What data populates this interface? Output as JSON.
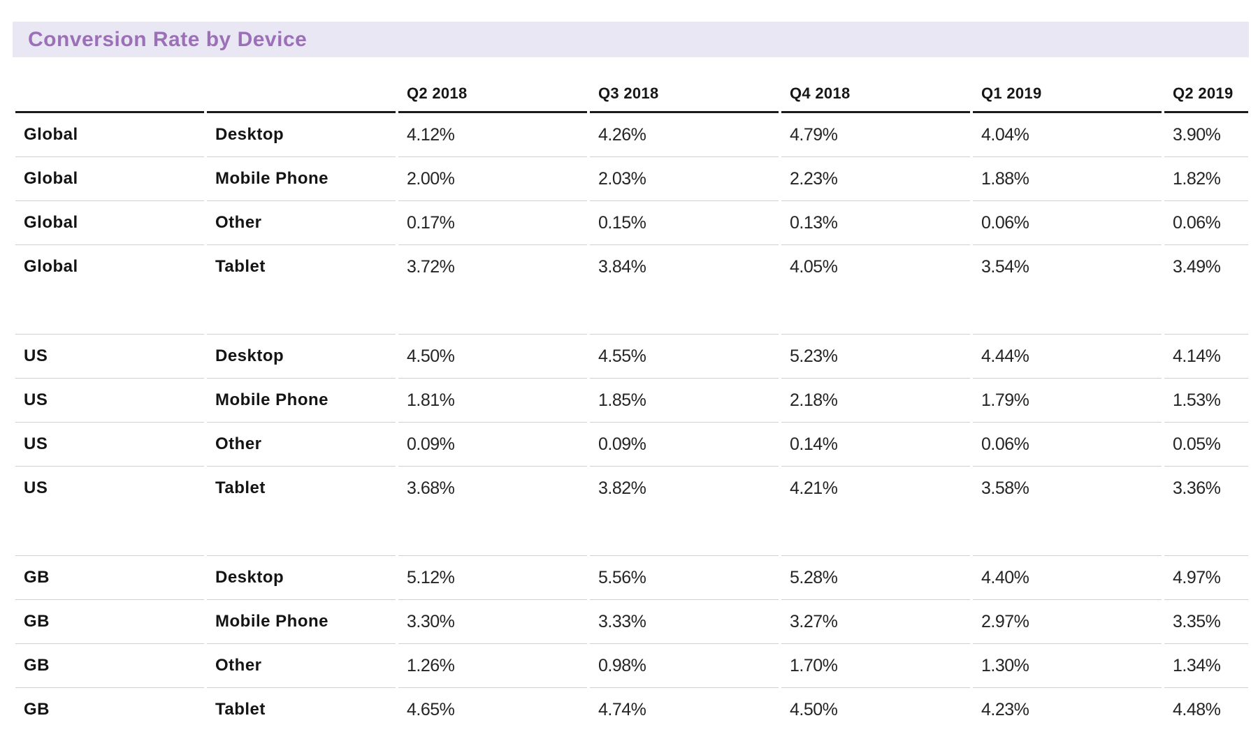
{
  "page": {
    "title": "Conversion Rate by Device"
  },
  "colors": {
    "title_text": "#9b70b8",
    "title_background": "#eae7f4",
    "header_rule": "#1a1a1a",
    "row_divider": "#d0d0d0",
    "label_text": "#141414",
    "value_text": "#242424"
  },
  "chart_data": {
    "type": "table",
    "title": "Conversion Rate by Device",
    "quarter_columns": [
      "Q2 2018",
      "Q3 2018",
      "Q4 2018",
      "Q1 2019",
      "Q2 2019"
    ],
    "rows": [
      {
        "region": "Global",
        "device": "Desktop",
        "values": [
          "4.12%",
          "4.26%",
          "4.79%",
          "4.04%",
          "3.90%"
        ]
      },
      {
        "region": "Global",
        "device": "Mobile Phone",
        "values": [
          "2.00%",
          "2.03%",
          "2.23%",
          "1.88%",
          "1.82%"
        ]
      },
      {
        "region": "Global",
        "device": "Other",
        "values": [
          "0.17%",
          "0.15%",
          "0.13%",
          "0.06%",
          "0.06%"
        ]
      },
      {
        "region": "Global",
        "device": "Tablet",
        "values": [
          "3.72%",
          "3.84%",
          "4.05%",
          "3.54%",
          "3.49%"
        ]
      },
      {
        "region": "US",
        "device": "Desktop",
        "values": [
          "4.50%",
          "4.55%",
          "5.23%",
          "4.44%",
          "4.14%"
        ]
      },
      {
        "region": "US",
        "device": "Mobile Phone",
        "values": [
          "1.81%",
          "1.85%",
          "2.18%",
          "1.79%",
          "1.53%"
        ]
      },
      {
        "region": "US",
        "device": "Other",
        "values": [
          "0.09%",
          "0.09%",
          "0.14%",
          "0.06%",
          "0.05%"
        ]
      },
      {
        "region": "US",
        "device": "Tablet",
        "values": [
          "3.68%",
          "3.82%",
          "4.21%",
          "3.58%",
          "3.36%"
        ]
      },
      {
        "region": "GB",
        "device": "Desktop",
        "values": [
          "5.12%",
          "5.56%",
          "5.28%",
          "4.40%",
          "4.97%"
        ]
      },
      {
        "region": "GB",
        "device": "Mobile Phone",
        "values": [
          "3.30%",
          "3.33%",
          "3.27%",
          "2.97%",
          "3.35%"
        ]
      },
      {
        "region": "GB",
        "device": "Other",
        "values": [
          "1.26%",
          "0.98%",
          "1.70%",
          "1.30%",
          "1.34%"
        ]
      },
      {
        "region": "GB",
        "device": "Tablet",
        "values": [
          "4.65%",
          "4.74%",
          "4.50%",
          "4.23%",
          "4.48%"
        ]
      }
    ]
  }
}
